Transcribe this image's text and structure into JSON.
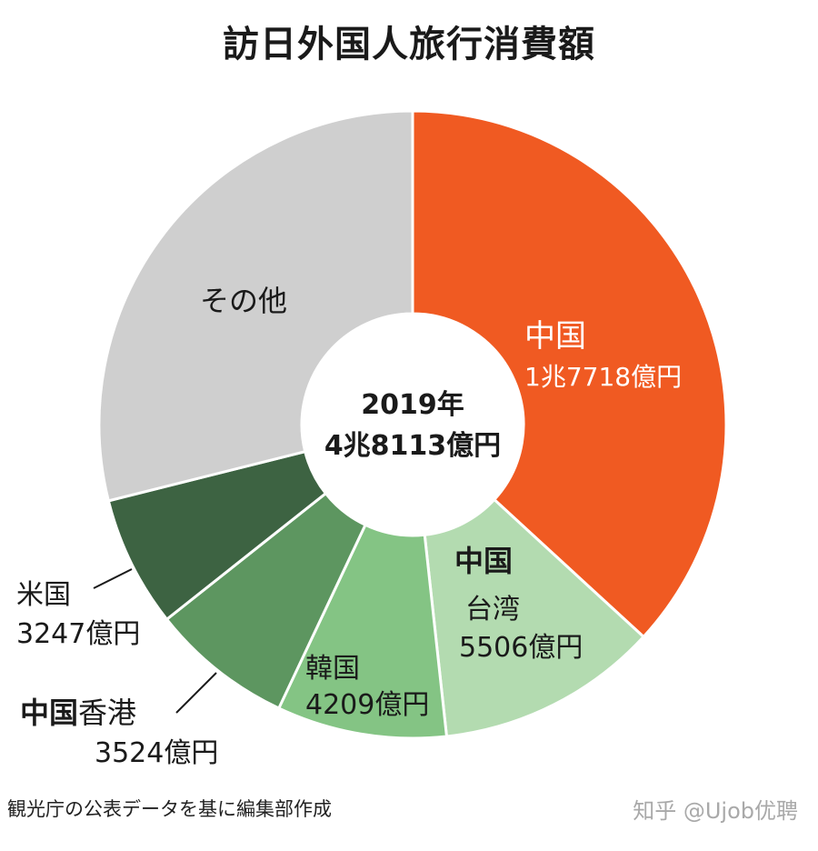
{
  "chart_data": {
    "type": "pie",
    "title": "訪日外国人旅行消費額",
    "center_label": {
      "year": "2019年",
      "total": "4兆8113億円"
    },
    "unit": "億円",
    "slices": [
      {
        "label": "中国",
        "value": 17718,
        "value_label": "1兆7718億円",
        "color": "#f05a22"
      },
      {
        "label": "中国台湾",
        "prefix": "中国",
        "name": "台湾",
        "value": 5506,
        "value_label": "5506億円",
        "color": "#b3dbb0"
      },
      {
        "label": "韓国",
        "value": 4209,
        "value_label": "4209億円",
        "color": "#84c484"
      },
      {
        "label": "中国香港",
        "prefix": "中国",
        "name": "香港",
        "value": 3524,
        "value_label": "3524億円",
        "color": "#5d9660"
      },
      {
        "label": "米国",
        "value": 3247,
        "value_label": "3247億円",
        "color": "#3d6342"
      },
      {
        "label": "その他",
        "value": 13909,
        "value_label": "",
        "color": "#cfcfcf"
      }
    ]
  },
  "footer": {
    "source": "観光庁の公表データを基に編集部作成",
    "watermark": "知乎 @Ujob优聘"
  }
}
